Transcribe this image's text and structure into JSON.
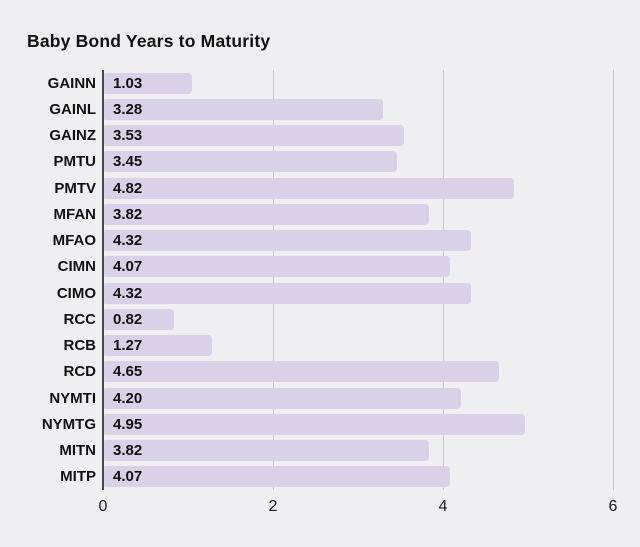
{
  "chart_data": {
    "type": "bar",
    "orientation": "horizontal",
    "title": "Baby Bond Years to Maturity",
    "categories": [
      "GAINN",
      "GAINL",
      "GAINZ",
      "PMTU",
      "PMTV",
      "MFAN",
      "MFAO",
      "CIMN",
      "CIMO",
      "RCC",
      "RCB",
      "RCD",
      "NYMTI",
      "NYMTG",
      "MITN",
      "MITP"
    ],
    "values": [
      1.03,
      3.28,
      3.53,
      3.45,
      4.82,
      3.82,
      4.32,
      4.07,
      4.32,
      0.82,
      1.27,
      4.65,
      4.2,
      4.95,
      3.82,
      4.07
    ],
    "value_labels": [
      "1.03",
      "3.28",
      "3.53",
      "3.45",
      "4.82",
      "3.82",
      "4.32",
      "4.07",
      "4.32",
      "0.82",
      "1.27",
      "4.65",
      "4.20",
      "4.95",
      "3.82",
      "4.07"
    ],
    "xlabel": "",
    "ylabel": "",
    "xlim": [
      0,
      6
    ],
    "xticks": [
      0,
      2,
      4,
      6
    ],
    "grid": true,
    "legend": false,
    "colors": {
      "bar": "#d8d1e7",
      "background": "#efeef0",
      "gridline": "#c9c9c9",
      "axis_line": "#4a4a4a",
      "text": "#111111"
    }
  }
}
